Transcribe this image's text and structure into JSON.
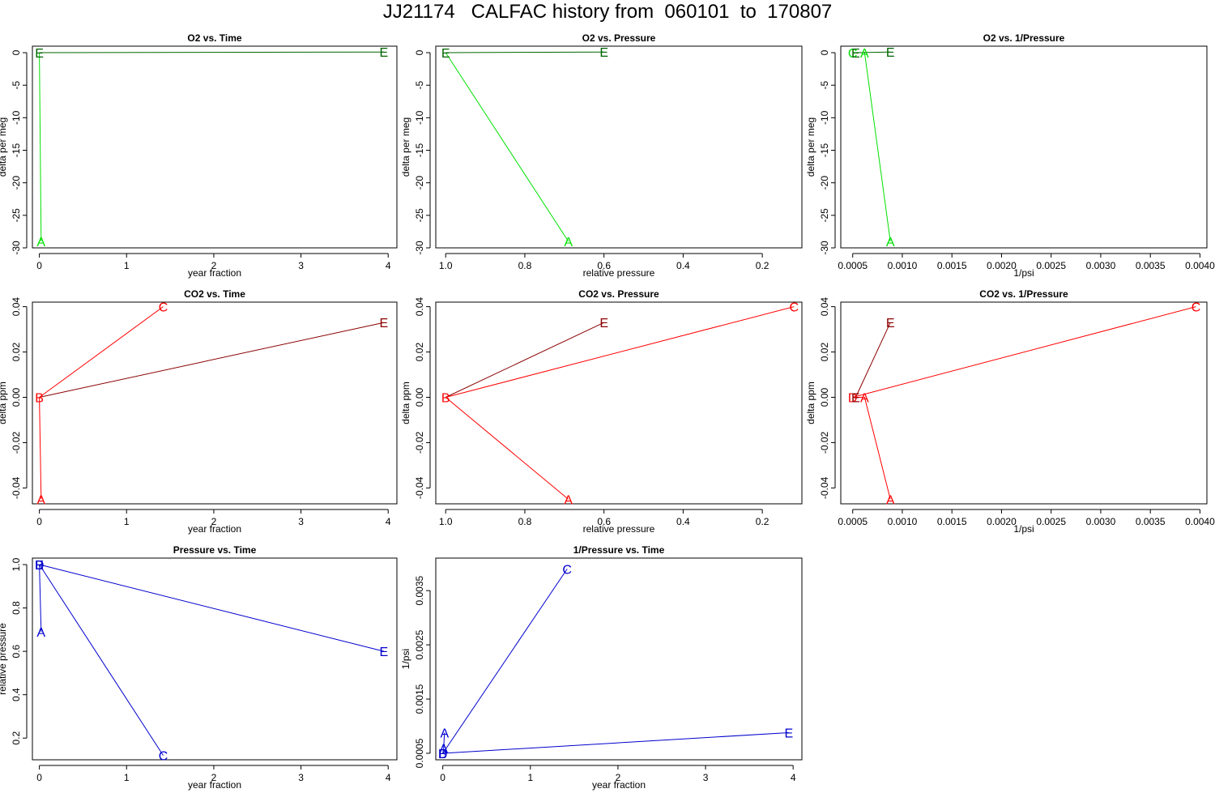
{
  "page": {
    "title": "JJ21174   CALFAC history from  060101  to  170807"
  },
  "colors": {
    "o2_bright": "#00e000",
    "o2_dark": "#006400",
    "co2_bright": "#ff0000",
    "co2_dark": "#8b0000",
    "pressure": "#0000cd",
    "axis": "#000000"
  },
  "chart_data": [
    {
      "id": "o2_time",
      "type": "line",
      "title": "O2 vs. Time",
      "xlabel": "year fraction",
      "ylabel": "delta per meg",
      "xlim": [
        -0.08,
        4.1
      ],
      "ylim": [
        -30,
        1
      ],
      "xticks": [
        0,
        1,
        2,
        3,
        4
      ],
      "xtick_labels": [
        "0",
        "1",
        "2",
        "3",
        "4"
      ],
      "yticks": [
        0,
        -5,
        -10,
        -15,
        -20,
        -25,
        -30
      ],
      "ytick_labels": [
        "0",
        "-5",
        "-10",
        "-15",
        "-20",
        "-25",
        "-30"
      ],
      "series": [
        {
          "name": "A",
          "color": "o2_bright",
          "points": [
            {
              "x": 0.0,
              "y": 0
            },
            {
              "x": 0.02,
              "y": -29
            }
          ],
          "labels": [
            "",
            "A"
          ]
        },
        {
          "name": "E",
          "color": "o2_dark",
          "points": [
            {
              "x": 0.0,
              "y": 0
            },
            {
              "x": 3.95,
              "y": 0.1
            }
          ],
          "labels": [
            "E",
            "E"
          ]
        }
      ]
    },
    {
      "id": "o2_pressure",
      "type": "line",
      "title": "O2 vs. Pressure",
      "xlabel": "relative pressure",
      "ylabel": "delta per meg",
      "xlim": [
        1.025,
        0.1
      ],
      "ylim": [
        -30,
        1
      ],
      "xticks": [
        1.0,
        0.8,
        0.6,
        0.4,
        0.2
      ],
      "xtick_labels": [
        "1.0",
        "0.8",
        "0.6",
        "0.4",
        "0.2"
      ],
      "yticks": [
        0,
        -5,
        -10,
        -15,
        -20,
        -25,
        -30
      ],
      "ytick_labels": [
        "0",
        "-5",
        "-10",
        "-15",
        "-20",
        "-25",
        "-30"
      ],
      "series": [
        {
          "name": "A",
          "color": "o2_bright",
          "points": [
            {
              "x": 1.0,
              "y": 0
            },
            {
              "x": 0.69,
              "y": -29
            }
          ],
          "labels": [
            "",
            "A"
          ]
        },
        {
          "name": "E",
          "color": "o2_dark",
          "points": [
            {
              "x": 1.0,
              "y": 0
            },
            {
              "x": 0.6,
              "y": 0.1
            }
          ],
          "labels": [
            "E",
            "E"
          ]
        }
      ]
    },
    {
      "id": "o2_invpressure",
      "type": "line",
      "title": "O2 vs. 1/Pressure",
      "xlabel": "1/psi",
      "ylabel": "delta per meg",
      "xlim": [
        0.00038,
        0.00407
      ],
      "ylim": [
        -30,
        1
      ],
      "xticks": [
        0.0005,
        0.001,
        0.0015,
        0.002,
        0.0025,
        0.003,
        0.0035,
        0.004
      ],
      "xtick_labels": [
        "0.0005",
        "0.0010",
        "0.0015",
        "0.0020",
        "0.0025",
        "0.0030",
        "0.0035",
        "0.0040"
      ],
      "yticks": [
        0,
        -5,
        -10,
        -15,
        -20,
        -25,
        -30
      ],
      "ytick_labels": [
        "0",
        "-5",
        "-10",
        "-15",
        "-20",
        "-25",
        "-30"
      ],
      "series": [
        {
          "name": "A",
          "color": "o2_bright",
          "points": [
            {
              "x": 0.0005,
              "y": 0
            },
            {
              "x": 0.00062,
              "y": 0
            },
            {
              "x": 0.00088,
              "y": -29
            }
          ],
          "labels": [
            "C",
            "A",
            "A"
          ]
        },
        {
          "name": "E",
          "color": "o2_dark",
          "points": [
            {
              "x": 0.00053,
              "y": 0
            },
            {
              "x": 0.00088,
              "y": 0.1
            }
          ],
          "labels": [
            "E",
            "E"
          ]
        }
      ]
    },
    {
      "id": "co2_time",
      "type": "line",
      "title": "CO2 vs. Time",
      "xlabel": "year fraction",
      "ylabel": "delta ppm",
      "xlim": [
        -0.08,
        4.1
      ],
      "ylim": [
        -0.047,
        0.042
      ],
      "xticks": [
        0,
        1,
        2,
        3,
        4
      ],
      "xtick_labels": [
        "0",
        "1",
        "2",
        "3",
        "4"
      ],
      "yticks": [
        0.04,
        0.02,
        0.0,
        -0.02,
        -0.04
      ],
      "ytick_labels": [
        "0.04",
        "0.02",
        "0.00",
        "-0.02",
        "-0.04"
      ],
      "series": [
        {
          "name": "A",
          "color": "co2_bright",
          "points": [
            {
              "x": 0.0,
              "y": 0
            },
            {
              "x": 0.02,
              "y": -0.045
            }
          ],
          "labels": [
            "",
            "A"
          ]
        },
        {
          "name": "C",
          "color": "co2_bright",
          "points": [
            {
              "x": 0.0,
              "y": 0
            },
            {
              "x": 1.42,
              "y": 0.04
            }
          ],
          "labels": [
            "B",
            "C"
          ]
        },
        {
          "name": "E",
          "color": "co2_dark",
          "points": [
            {
              "x": 0.0,
              "y": 0
            },
            {
              "x": 3.95,
              "y": 0.033
            }
          ],
          "labels": [
            "",
            "E"
          ]
        }
      ]
    },
    {
      "id": "co2_pressure",
      "type": "line",
      "title": "CO2 vs. Pressure",
      "xlabel": "relative pressure",
      "ylabel": "delta ppm",
      "xlim": [
        1.025,
        0.1
      ],
      "ylim": [
        -0.047,
        0.042
      ],
      "xticks": [
        1.0,
        0.8,
        0.6,
        0.4,
        0.2
      ],
      "xtick_labels": [
        "1.0",
        "0.8",
        "0.6",
        "0.4",
        "0.2"
      ],
      "yticks": [
        0.04,
        0.02,
        0.0,
        -0.02,
        -0.04
      ],
      "ytick_labels": [
        "0.04",
        "0.02",
        "0.00",
        "-0.02",
        "-0.04"
      ],
      "series": [
        {
          "name": "A",
          "color": "co2_bright",
          "points": [
            {
              "x": 1.0,
              "y": 0
            },
            {
              "x": 0.69,
              "y": -0.045
            }
          ],
          "labels": [
            "",
            "A"
          ]
        },
        {
          "name": "C",
          "color": "co2_bright",
          "points": [
            {
              "x": 1.0,
              "y": 0
            },
            {
              "x": 0.12,
              "y": 0.04
            }
          ],
          "labels": [
            "B",
            "C"
          ]
        },
        {
          "name": "E",
          "color": "co2_dark",
          "points": [
            {
              "x": 1.0,
              "y": 0
            },
            {
              "x": 0.6,
              "y": 0.033
            }
          ],
          "labels": [
            "",
            "E"
          ]
        }
      ]
    },
    {
      "id": "co2_invpressure",
      "type": "line",
      "title": "CO2 vs. 1/Pressure",
      "xlabel": "1/psi",
      "ylabel": "delta ppm",
      "xlim": [
        0.00038,
        0.00407
      ],
      "ylim": [
        -0.047,
        0.042
      ],
      "xticks": [
        0.0005,
        0.001,
        0.0015,
        0.002,
        0.0025,
        0.003,
        0.0035,
        0.004
      ],
      "xtick_labels": [
        "0.0005",
        "0.0010",
        "0.0015",
        "0.0020",
        "0.0025",
        "0.0030",
        "0.0035",
        "0.0040"
      ],
      "yticks": [
        0.04,
        0.02,
        0.0,
        -0.02,
        -0.04
      ],
      "ytick_labels": [
        "0.04",
        "0.02",
        "0.00",
        "-0.02",
        "-0.04"
      ],
      "series": [
        {
          "name": "A",
          "color": "co2_bright",
          "points": [
            {
              "x": 0.0005,
              "y": 0
            },
            {
              "x": 0.00062,
              "y": 0
            },
            {
              "x": 0.00088,
              "y": -0.045
            }
          ],
          "labels": [
            "D",
            "A",
            "A"
          ]
        },
        {
          "name": "C",
          "color": "co2_bright",
          "points": [
            {
              "x": 0.0005,
              "y": 0
            },
            {
              "x": 0.00396,
              "y": 0.04
            }
          ],
          "labels": [
            "",
            "C"
          ]
        },
        {
          "name": "E",
          "color": "co2_dark",
          "points": [
            {
              "x": 0.00053,
              "y": 0
            },
            {
              "x": 0.00088,
              "y": 0.033
            }
          ],
          "labels": [
            "E",
            "E"
          ]
        }
      ]
    },
    {
      "id": "pressure_time",
      "type": "line",
      "title": "Pressure vs. Time",
      "xlabel": "year fraction",
      "ylabel": "relative pressure",
      "xlim": [
        -0.08,
        4.1
      ],
      "ylim": [
        0.1,
        1.03
      ],
      "xticks": [
        0,
        1,
        2,
        3,
        4
      ],
      "xtick_labels": [
        "0",
        "1",
        "2",
        "3",
        "4"
      ],
      "yticks": [
        1.0,
        0.8,
        0.6,
        0.4,
        0.2
      ],
      "ytick_labels": [
        "1.0",
        "0.8",
        "0.6",
        "0.4",
        "0.2"
      ],
      "series": [
        {
          "name": "A",
          "color": "pressure",
          "points": [
            {
              "x": 0.0,
              "y": 1.0
            },
            {
              "x": 0.02,
              "y": 0.69
            }
          ],
          "labels": [
            "B",
            "A"
          ]
        },
        {
          "name": "C",
          "color": "pressure",
          "points": [
            {
              "x": 0.0,
              "y": 1.0
            },
            {
              "x": 1.42,
              "y": 0.12
            }
          ],
          "labels": [
            "D",
            "C"
          ]
        },
        {
          "name": "E",
          "color": "pressure",
          "points": [
            {
              "x": 0.0,
              "y": 1.0
            },
            {
              "x": 3.95,
              "y": 0.6
            }
          ],
          "labels": [
            "E",
            "E"
          ]
        }
      ]
    },
    {
      "id": "invpressure_time",
      "type": "line",
      "title": "1/Pressure vs. Time",
      "xlabel": "year fraction",
      "ylabel": "1/psi",
      "xlim": [
        -0.08,
        4.1
      ],
      "ylim": [
        0.00038,
        0.0041
      ],
      "xticks": [
        0,
        1,
        2,
        3,
        4
      ],
      "xtick_labels": [
        "0",
        "1",
        "2",
        "3",
        "4"
      ],
      "yticks": [
        0.0035,
        0.0025,
        0.0015,
        0.0005
      ],
      "ytick_labels": [
        "0.0035",
        "0.0025",
        "0.0015",
        "0.0005"
      ],
      "series": [
        {
          "name": "A",
          "color": "pressure",
          "points": [
            {
              "x": 0.0,
              "y": 0.0005
            },
            {
              "x": 0.01,
              "y": 0.0006
            },
            {
              "x": 0.02,
              "y": 0.00088
            }
          ],
          "labels": [
            "B",
            "A",
            "A"
          ]
        },
        {
          "name": "C",
          "color": "pressure",
          "points": [
            {
              "x": 0.0,
              "y": 0.0005
            },
            {
              "x": 1.42,
              "y": 0.0039
            }
          ],
          "labels": [
            "D",
            "C"
          ]
        },
        {
          "name": "E",
          "color": "pressure",
          "points": [
            {
              "x": 0.0,
              "y": 0.0005
            },
            {
              "x": 3.95,
              "y": 0.00088
            }
          ],
          "labels": [
            "",
            "E"
          ]
        }
      ]
    }
  ]
}
